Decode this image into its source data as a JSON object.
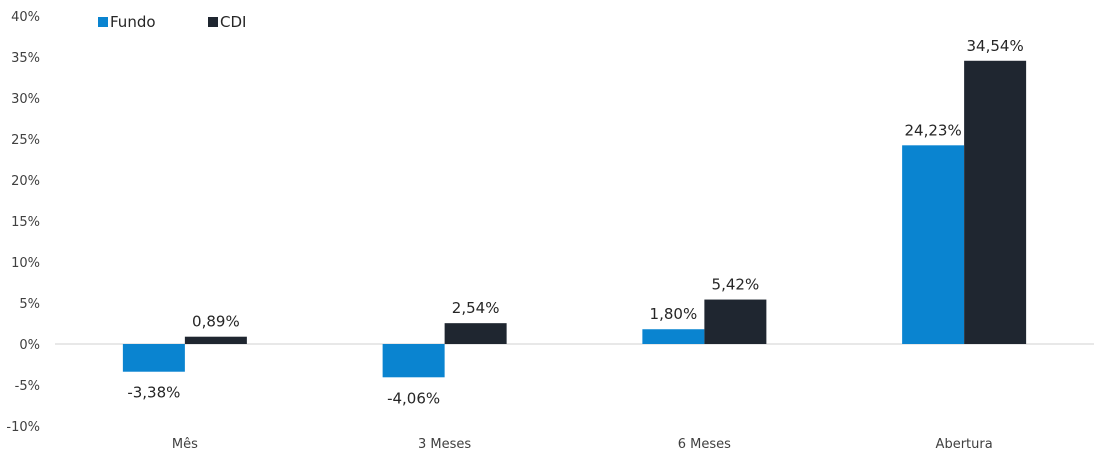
{
  "chart_data": {
    "type": "bar",
    "title": "",
    "xlabel": "",
    "ylabel": "",
    "categories": [
      "Mês",
      "3 Meses",
      "6 Meses",
      "Abertura"
    ],
    "series": [
      {
        "name": "Fundo",
        "color": "#0a84d0",
        "values": [
          -3.38,
          -4.06,
          1.8,
          24.23
        ],
        "labels": [
          "-3,38%",
          "-4,06%",
          "1,80%",
          "24,23%"
        ]
      },
      {
        "name": "CDI",
        "color": "#1f2630",
        "values": [
          0.89,
          2.54,
          5.42,
          34.54
        ],
        "labels": [
          "0,89%",
          "2,54%",
          "5,42%",
          "34,54%"
        ]
      }
    ],
    "ylim": [
      -10,
      40
    ],
    "yticks": [
      40,
      35,
      30,
      25,
      20,
      15,
      10,
      5,
      0,
      -5,
      -10
    ],
    "ytick_labels": [
      "40%",
      "35%",
      "30%",
      "25%",
      "20%",
      "15%",
      "10%",
      "5%",
      "0%",
      "-5%",
      "-10%"
    ],
    "legend": {
      "position": "top-left"
    },
    "grid": false
  }
}
